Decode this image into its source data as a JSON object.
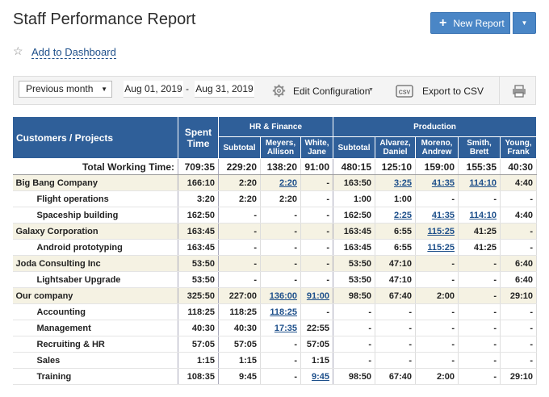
{
  "title": "Staff Performance Report",
  "new_report_label": "New Report",
  "add_to_dashboard": "Add to Dashboard",
  "toolbar": {
    "period": "Previous month",
    "date_from": "Aug 01, 2019",
    "date_sep": "-",
    "date_to": "Aug 31, 2019",
    "edit_configuration": "Edit Configuration",
    "export_csv": "Export to CSV"
  },
  "table": {
    "header": {
      "customers_projects": "Customers / Projects",
      "spent_time": "Spent Time",
      "group_hr": "HR & Finance",
      "group_production": "Production",
      "hr_cols": [
        "Subtotal",
        "Meyers, Allison",
        "White, Jane"
      ],
      "prod_cols": [
        "Subtotal",
        "Alvarez, Daniel",
        "Moreno, Andrew",
        "Smith, Brett",
        "Young, Frank"
      ]
    },
    "total_label": "Total Working Time:",
    "total_values": [
      "709:35",
      "229:20",
      "138:20",
      "91:00",
      "480:15",
      "125:10",
      "159:00",
      "155:35",
      "40:30"
    ],
    "rows": [
      {
        "name": "Big Bang Company",
        "level": 0,
        "values": [
          "166:10",
          "2:20",
          "2:20",
          "-",
          "163:50",
          "3:25",
          "41:35",
          "114:10",
          "4:40"
        ],
        "links": [
          2,
          5,
          6,
          7
        ]
      },
      {
        "name": "Flight operations",
        "level": 1,
        "values": [
          "3:20",
          "2:20",
          "2:20",
          "-",
          "1:00",
          "1:00",
          "-",
          "-",
          "-"
        ],
        "links": []
      },
      {
        "name": "Spaceship building",
        "level": 1,
        "values": [
          "162:50",
          "-",
          "-",
          "-",
          "162:50",
          "2:25",
          "41:35",
          "114:10",
          "4:40"
        ],
        "links": [
          5,
          6,
          7
        ]
      },
      {
        "name": "Galaxy Corporation",
        "level": 0,
        "values": [
          "163:45",
          "-",
          "-",
          "-",
          "163:45",
          "6:55",
          "115:25",
          "41:25",
          "-"
        ],
        "links": [
          6
        ]
      },
      {
        "name": "Android prototyping",
        "level": 1,
        "values": [
          "163:45",
          "-",
          "-",
          "-",
          "163:45",
          "6:55",
          "115:25",
          "41:25",
          "-"
        ],
        "links": [
          6
        ]
      },
      {
        "name": "Joda Consulting Inc",
        "level": 0,
        "values": [
          "53:50",
          "-",
          "-",
          "-",
          "53:50",
          "47:10",
          "-",
          "-",
          "6:40"
        ],
        "links": []
      },
      {
        "name": "Lightsaber Upgrade",
        "level": 1,
        "values": [
          "53:50",
          "-",
          "-",
          "-",
          "53:50",
          "47:10",
          "-",
          "-",
          "6:40"
        ],
        "links": []
      },
      {
        "name": "Our company",
        "level": 0,
        "values": [
          "325:50",
          "227:00",
          "136:00",
          "91:00",
          "98:50",
          "67:40",
          "2:00",
          "-",
          "29:10"
        ],
        "links": [
          2,
          3
        ]
      },
      {
        "name": "Accounting",
        "level": 1,
        "values": [
          "118:25",
          "118:25",
          "118:25",
          "-",
          "-",
          "-",
          "-",
          "-",
          "-"
        ],
        "links": [
          2
        ]
      },
      {
        "name": "Management",
        "level": 1,
        "values": [
          "40:30",
          "40:30",
          "17:35",
          "22:55",
          "-",
          "-",
          "-",
          "-",
          "-"
        ],
        "links": [
          2
        ]
      },
      {
        "name": "Recruiting & HR",
        "level": 1,
        "values": [
          "57:05",
          "57:05",
          "-",
          "57:05",
          "-",
          "-",
          "-",
          "-",
          "-"
        ],
        "links": []
      },
      {
        "name": "Sales",
        "level": 1,
        "values": [
          "1:15",
          "1:15",
          "-",
          "1:15",
          "-",
          "-",
          "-",
          "-",
          "-"
        ],
        "links": []
      },
      {
        "name": "Training",
        "level": 1,
        "values": [
          "108:35",
          "9:45",
          "-",
          "9:45",
          "98:50",
          "67:40",
          "2:00",
          "-",
          "29:10"
        ],
        "links": [
          3
        ]
      }
    ]
  }
}
